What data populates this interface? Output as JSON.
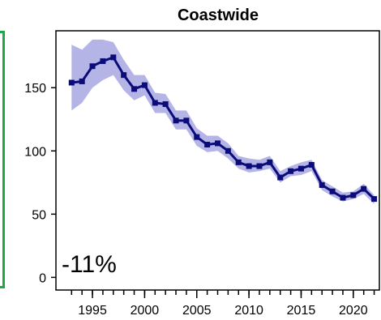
{
  "chart_data": {
    "type": "line",
    "title": "Coastwide",
    "annotation": "-11%",
    "xlabel": "",
    "ylabel": "",
    "xlim": [
      1991.5,
      2022.5
    ],
    "ylim": [
      -10,
      195
    ],
    "x_ticks": [
      1995,
      2000,
      2005,
      2010,
      2015,
      2020
    ],
    "x_minor_ticks": [
      1993,
      1994,
      1995,
      1996,
      1997,
      1998,
      1999,
      2000,
      2001,
      2002,
      2003,
      2004,
      2005,
      2006,
      2007,
      2008,
      2009,
      2010,
      2011,
      2012,
      2013,
      2014,
      2015,
      2016,
      2017,
      2018,
      2019,
      2020,
      2021,
      2022
    ],
    "y_ticks": [
      0,
      50,
      100,
      150
    ],
    "grid": false,
    "colors": {
      "line": "#0b0b7a",
      "band": "#b4b4e6",
      "frame": "#1fa84a"
    },
    "series": [
      {
        "x": [
          1993,
          1994,
          1995,
          1996,
          1997,
          1998,
          1999,
          2000,
          2001,
          2002,
          2003,
          2004,
          2005,
          2006,
          2007,
          2008,
          2009,
          2010,
          2011,
          2012,
          2013,
          2014,
          2015,
          2016,
          2017,
          2018,
          2019,
          2020,
          2021,
          2022
        ],
        "values": [
          154,
          155,
          167,
          171,
          174,
          160,
          149,
          152,
          138,
          137,
          124,
          124,
          111,
          105,
          106,
          100,
          91,
          88,
          88,
          91,
          79,
          84,
          86,
          89,
          73,
          68,
          63,
          65,
          70,
          62
        ],
        "lower": [
          132,
          138,
          150,
          156,
          160,
          148,
          140,
          144,
          130,
          130,
          117,
          117,
          104,
          99,
          100,
          94,
          86,
          83,
          84,
          86,
          75,
          80,
          81,
          84,
          69,
          64,
          60,
          62,
          66,
          58
        ],
        "upper": [
          184,
          180,
          188,
          188,
          186,
          172,
          160,
          160,
          146,
          145,
          132,
          132,
          118,
          112,
          112,
          106,
          96,
          94,
          93,
          96,
          84,
          88,
          91,
          93,
          77,
          72,
          67,
          68,
          74,
          65
        ]
      }
    ]
  }
}
